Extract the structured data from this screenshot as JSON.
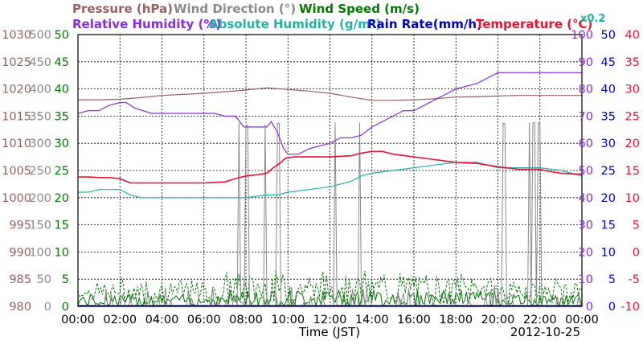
{
  "legend": {
    "pressure": "Pressure (hPa)",
    "wind_direction": "Wind Direction (°)",
    "wind_speed": "Wind Speed (m/s)",
    "relative_humidity": "Relative Humidity (%)",
    "absolute_humidity": "Absolute Humidity (g/m³)",
    "rain_rate": "Rain Rate(mm/h)",
    "temperature": "Temperature (°C)",
    "scale_note": "x0.2"
  },
  "xlabel": "Time (JST)",
  "date": "2012-10-25",
  "colors": {
    "pressure": "#9a6060",
    "wind_direction": "#8a8a8a",
    "wind_speed": "#007a00",
    "relative_humidity": "#8a2be2",
    "absolute_humidity": "#20b2aa",
    "rain_rate": "#0000cc",
    "temperature": "#ee1133"
  },
  "chart_data": {
    "type": "line",
    "x_ticks": [
      "00:00",
      "02:00",
      "04:00",
      "06:00",
      "08:00",
      "10:00",
      "12:00",
      "14:00",
      "16:00",
      "18:00",
      "20:00",
      "22:00",
      "00:00"
    ],
    "axes": {
      "pressure": {
        "ticks": [
          "980",
          "985",
          "990",
          "995",
          "1000",
          "1005",
          "1010",
          "1015",
          "1020",
          "1025",
          "1030"
        ],
        "ylim": [
          980,
          1030
        ]
      },
      "wind_direction": {
        "ticks": [
          "0",
          "50",
          "100",
          "150",
          "200",
          "250",
          "300",
          "350",
          "400",
          "450",
          "500"
        ],
        "ylim": [
          0,
          500
        ]
      },
      "wind_speed": {
        "ticks": [
          "0",
          "5",
          "10",
          "15",
          "20",
          "25",
          "30",
          "35",
          "40",
          "45",
          "50"
        ],
        "ylim": [
          0,
          50
        ]
      },
      "relative_humidity": {
        "ticks": [
          "0",
          "10",
          "20",
          "30",
          "40",
          "50",
          "60",
          "70",
          "80",
          "90",
          "100"
        ],
        "ylim": [
          0,
          100
        ]
      },
      "rain_rate": {
        "ticks": [
          "0",
          "5",
          "10",
          "15",
          "20",
          "25",
          "30",
          "35",
          "40",
          "45",
          "50"
        ],
        "ylim": [
          0,
          50
        ]
      },
      "temperature": {
        "ticks": [
          "-10",
          "-5",
          "0",
          "5",
          "10",
          "15",
          "20",
          "25",
          "30",
          "35",
          "40"
        ],
        "ylim": [
          -10,
          40
        ]
      }
    },
    "series": [
      {
        "name": "Pressure (hPa)",
        "key": "pressure",
        "axis": "pressure",
        "x": [
          0,
          1,
          2,
          3,
          4,
          5,
          6,
          7,
          8,
          9,
          10,
          11,
          12,
          13,
          14,
          15,
          16,
          17,
          18,
          19,
          20,
          21,
          22,
          23,
          24
        ],
        "y": [
          1018.0,
          1018.0,
          1018.1,
          1018.4,
          1018.8,
          1019.0,
          1019.2,
          1019.5,
          1019.8,
          1020.2,
          1019.9,
          1019.6,
          1019.2,
          1018.5,
          1017.9,
          1017.9,
          1018.0,
          1018.2,
          1018.5,
          1018.6,
          1018.7,
          1018.8,
          1018.8,
          1018.8,
          1018.8
        ]
      },
      {
        "name": "Relative Humidity (%)",
        "key": "relative_humidity",
        "axis": "relative_humidity",
        "x": [
          0,
          0.5,
          1.0,
          1.5,
          2.0,
          2.3,
          2.7,
          3.5,
          4.5,
          5.5,
          6.5,
          7.0,
          7.5,
          7.9,
          8.2,
          8.6,
          9.0,
          9.2,
          9.5,
          9.8,
          10.0,
          10.5,
          11.0,
          11.5,
          12.0,
          12.5,
          13.0,
          13.5,
          14.0,
          14.5,
          15.0,
          15.5,
          16.0,
          17.0,
          18.0,
          19.0,
          19.5,
          20.0,
          21.0,
          22.0,
          22.5,
          23.0,
          24.0
        ],
        "y": [
          71,
          72,
          72,
          74,
          75,
          75,
          73,
          71,
          71,
          71,
          71,
          70,
          70,
          66,
          66,
          66,
          66,
          68,
          64,
          58,
          56,
          56,
          58,
          59,
          60,
          62,
          62,
          63,
          66,
          68,
          70,
          72,
          72,
          76,
          80,
          82,
          84,
          86,
          86,
          86,
          86,
          86,
          86
        ]
      },
      {
        "name": "Absolute Humidity (g/m³)",
        "key": "absolute_humidity",
        "axis": "relative_humidity",
        "x": [
          0,
          0.5,
          1.0,
          2.0,
          2.5,
          3.0,
          4.0,
          5.0,
          6.0,
          7.0,
          8.0,
          9.0,
          9.5,
          10.0,
          11.0,
          12.0,
          12.5,
          13.0,
          13.5,
          14.0,
          15.0,
          16.0,
          17.0,
          18.0,
          19.0,
          20.0,
          21.0,
          22.0,
          23.0,
          24.0
        ],
        "y": [
          42,
          42,
          43,
          43,
          41,
          40,
          40,
          40,
          40,
          40,
          40,
          41,
          41,
          42,
          43,
          44,
          45,
          46,
          48,
          49,
          50,
          51,
          52,
          53,
          53,
          51,
          51,
          51,
          50,
          48
        ]
      },
      {
        "name": "Temperature (°C)",
        "key": "temperature",
        "axis": "temperature",
        "x": [
          0,
          0.5,
          1.0,
          1.5,
          2.0,
          2.5,
          3.0,
          4.0,
          5.0,
          6.0,
          6.5,
          7.0,
          7.5,
          8.0,
          8.5,
          9.0,
          9.3,
          9.6,
          9.9,
          10.3,
          11.0,
          12.0,
          13.0,
          13.5,
          14.0,
          14.5,
          15.0,
          16.0,
          17.0,
          18.0,
          19.0,
          20.0,
          21.0,
          22.0,
          22.5,
          23.0,
          24.0
        ],
        "y": [
          13.8,
          13.8,
          13.7,
          13.7,
          13.5,
          12.7,
          12.7,
          12.7,
          12.7,
          12.7,
          12.8,
          12.9,
          13.5,
          14.0,
          14.2,
          14.5,
          15.5,
          16.3,
          17.3,
          17.5,
          17.5,
          17.5,
          17.7,
          18.2,
          18.5,
          18.5,
          18.0,
          17.5,
          17.0,
          16.5,
          16.3,
          15.7,
          15.2,
          15.2,
          14.8,
          14.5,
          14.3
        ]
      }
    ],
    "spike_series": {
      "name": "Wind Direction (°)",
      "key": "wind_direction",
      "axis": "wind_direction",
      "spikes_at": [
        7.65,
        8.05,
        8.9,
        9.55,
        12.25,
        13.4,
        20.3,
        21.5,
        21.7,
        21.95
      ],
      "spike_values": [
        337,
        334,
        335,
        337,
        339,
        338,
        337,
        338,
        338,
        337
      ],
      "base_value": 0
    },
    "noise_series": {
      "name": "Wind Speed (m/s)",
      "key": "wind_speed",
      "axis": "wind_speed",
      "range": [
        0,
        7
      ]
    }
  }
}
